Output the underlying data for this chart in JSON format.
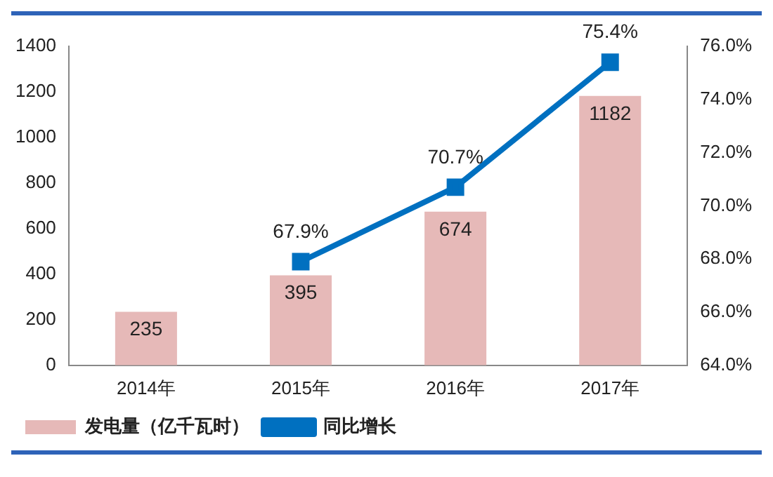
{
  "chart_data": {
    "type": "bar",
    "categories": [
      "2014年",
      "2015年",
      "2016年",
      "2017年"
    ],
    "series": [
      {
        "name": "发电量（亿千瓦时）",
        "color": "#e6b9b8",
        "values": [
          235,
          395,
          674,
          1182
        ]
      },
      {
        "name": "同比增长",
        "type": "line",
        "axis": "y2",
        "color": "#0070c0",
        "values": [
          null,
          67.9,
          70.7,
          75.4
        ],
        "value_labels": [
          null,
          "67.9%",
          "70.7%",
          "75.4%"
        ]
      }
    ],
    "ylim": [
      0,
      1400
    ],
    "yticks": [
      0,
      200,
      400,
      600,
      800,
      1000,
      1200,
      1400
    ],
    "y2lim": [
      64,
      76
    ],
    "y2ticks": [
      {
        "value": 64,
        "label": "64.0%"
      },
      {
        "value": 66,
        "label": "66.0%"
      },
      {
        "value": 68,
        "label": "68.0%"
      },
      {
        "value": 70,
        "label": "70.0%"
      },
      {
        "value": 72,
        "label": "72.0%"
      },
      {
        "value": 74,
        "label": "74.0%"
      },
      {
        "value": 76,
        "label": "76.0%"
      }
    ],
    "data_labels": true,
    "grid": false,
    "legend": "bottom left",
    "marker": "square",
    "line_style": "solid"
  }
}
